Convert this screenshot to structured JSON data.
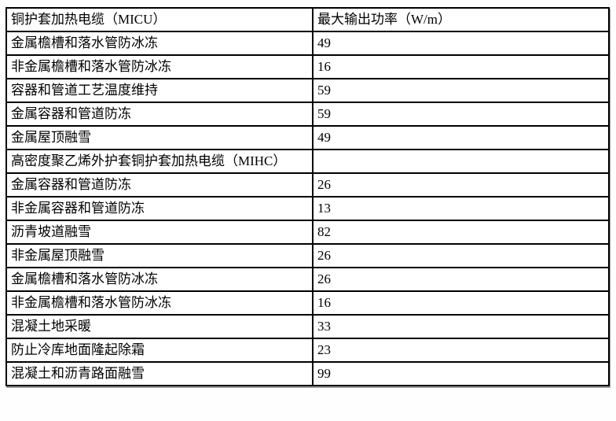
{
  "page": {
    "background_color": "#ffffff",
    "table_border_color": "#000000",
    "shadow_color": "#9e9e9e"
  },
  "table": {
    "columns": [
      "cable-application",
      "max-output-power"
    ],
    "rows": [
      {
        "c1": "铜护套加热电缆（MICU）",
        "c2": "最大输出功率（W/m）",
        "role": "header"
      },
      {
        "c1": "金属檐槽和落水管防冰冻",
        "c2": "49",
        "role": "data"
      },
      {
        "c1": "非金属檐槽和落水管防冰冻",
        "c2": "16",
        "role": "data"
      },
      {
        "c1": "容器和管道工艺温度维持",
        "c2": "59",
        "role": "data"
      },
      {
        "c1": "金属容器和管道防冻",
        "c2": "59",
        "role": "data"
      },
      {
        "c1": "金属屋顶融雪",
        "c2": "49",
        "role": "data"
      },
      {
        "c1": "高密度聚乙烯外护套铜护套加热电缆（MIHC）",
        "c2": "",
        "role": "section-header"
      },
      {
        "c1": "金属容器和管道防冻",
        "c2": "26",
        "role": "data"
      },
      {
        "c1": "非金属容器和管道防冻",
        "c2": "13",
        "role": "data"
      },
      {
        "c1": "沥青坡道融雪",
        "c2": "82",
        "role": "data"
      },
      {
        "c1": "非金属屋顶融雪",
        "c2": "26",
        "role": "data"
      },
      {
        "c1": "金属檐槽和落水管防冰冻",
        "c2": "26",
        "role": "data"
      },
      {
        "c1": "非金属檐槽和落水管防冰冻",
        "c2": "16",
        "role": "data"
      },
      {
        "c1": "混凝土地采暖",
        "c2": "33",
        "role": "data"
      },
      {
        "c1": "防止冷库地面隆起除霜",
        "c2": "23",
        "role": "data"
      },
      {
        "c1": "混凝土和沥青路面融雪",
        "c2": "99",
        "role": "data"
      }
    ]
  }
}
